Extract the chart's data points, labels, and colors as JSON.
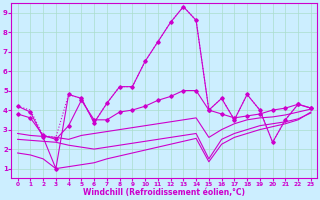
{
  "bg_color": "#cceeff",
  "line_color": "#cc00cc",
  "grid_color": "#aaddcc",
  "xlim": [
    -0.5,
    23.5
  ],
  "ylim": [
    0.5,
    9.5
  ],
  "xticks": [
    0,
    1,
    2,
    3,
    4,
    5,
    6,
    7,
    8,
    9,
    10,
    11,
    12,
    13,
    14,
    15,
    16,
    17,
    18,
    19,
    20,
    21,
    22,
    23
  ],
  "yticks": [
    1,
    2,
    3,
    4,
    5,
    6,
    7,
    8,
    9
  ],
  "xlabel": "Windchill (Refroidissement éolien,°C)",
  "line1_x": [
    0,
    1,
    2,
    3,
    4,
    5,
    6,
    7,
    8,
    9,
    10,
    11,
    12,
    13,
    14,
    15,
    16,
    17,
    18,
    19,
    20,
    21,
    22,
    23
  ],
  "line1_y": [
    4.2,
    3.9,
    2.6,
    1.0,
    4.8,
    4.6,
    3.35,
    4.35,
    5.2,
    5.2,
    6.5,
    7.5,
    8.5,
    9.3,
    8.6,
    4.0,
    4.6,
    3.5,
    4.8,
    4.0,
    2.35,
    3.5,
    4.3,
    4.1
  ],
  "line1_has_marker": true,
  "line2_x": [
    0,
    1,
    2,
    3,
    4,
    5,
    6,
    7,
    8,
    9,
    10,
    11,
    12,
    13,
    14,
    15,
    16,
    17,
    18,
    19,
    20,
    21,
    22,
    23
  ],
  "line2_y": [
    4.2,
    4.0,
    2.7,
    2.6,
    4.8,
    4.6,
    3.35,
    4.35,
    5.2,
    5.2,
    6.5,
    7.5,
    8.5,
    9.3,
    8.6,
    4.0,
    4.6,
    3.5,
    4.8,
    4.0,
    2.35,
    3.5,
    4.3,
    4.1
  ],
  "line2_has_marker": false,
  "line3_x": [
    0,
    1,
    2,
    3,
    4,
    5,
    6,
    7,
    8,
    9,
    10,
    11,
    12,
    13,
    14,
    15,
    16,
    17,
    18,
    19,
    20,
    21,
    22,
    23
  ],
  "line3_y": [
    3.8,
    3.6,
    2.7,
    2.5,
    3.2,
    4.5,
    3.5,
    3.5,
    3.9,
    4.0,
    4.2,
    4.5,
    4.7,
    5.0,
    5.0,
    4.0,
    3.8,
    3.6,
    3.7,
    3.8,
    4.0,
    4.1,
    4.3,
    4.1
  ],
  "line3_has_marker": true,
  "line4_x": [
    0,
    1,
    2,
    3,
    4,
    5,
    6,
    7,
    8,
    9,
    10,
    11,
    12,
    13,
    14,
    15,
    16,
    17,
    18,
    19,
    20,
    21,
    22,
    23
  ],
  "line4_y": [
    2.8,
    2.7,
    2.65,
    2.6,
    2.5,
    2.7,
    2.8,
    2.9,
    3.0,
    3.1,
    3.2,
    3.3,
    3.4,
    3.5,
    3.6,
    2.6,
    3.0,
    3.3,
    3.5,
    3.6,
    3.65,
    3.75,
    3.9,
    4.05
  ],
  "line4_has_marker": false,
  "line5_x": [
    0,
    1,
    2,
    3,
    4,
    5,
    6,
    7,
    8,
    9,
    10,
    11,
    12,
    13,
    14,
    15,
    16,
    17,
    18,
    19,
    20,
    21,
    22,
    23
  ],
  "line5_y": [
    2.5,
    2.45,
    2.4,
    2.35,
    2.2,
    2.1,
    2.0,
    2.1,
    2.2,
    2.3,
    2.4,
    2.5,
    2.6,
    2.7,
    2.8,
    1.5,
    2.5,
    2.8,
    3.0,
    3.2,
    3.3,
    3.4,
    3.55,
    3.85
  ],
  "line5_has_marker": false,
  "line6_x": [
    0,
    1,
    2,
    3,
    4,
    5,
    6,
    7,
    8,
    9,
    10,
    11,
    12,
    13,
    14,
    15,
    16,
    17,
    18,
    19,
    20,
    21,
    22,
    23
  ],
  "line6_y": [
    1.8,
    1.7,
    1.5,
    1.0,
    1.1,
    1.2,
    1.3,
    1.5,
    1.65,
    1.8,
    1.95,
    2.1,
    2.25,
    2.4,
    2.55,
    1.35,
    2.25,
    2.6,
    2.8,
    3.0,
    3.15,
    3.3,
    3.5,
    3.9
  ],
  "line6_has_marker": false
}
